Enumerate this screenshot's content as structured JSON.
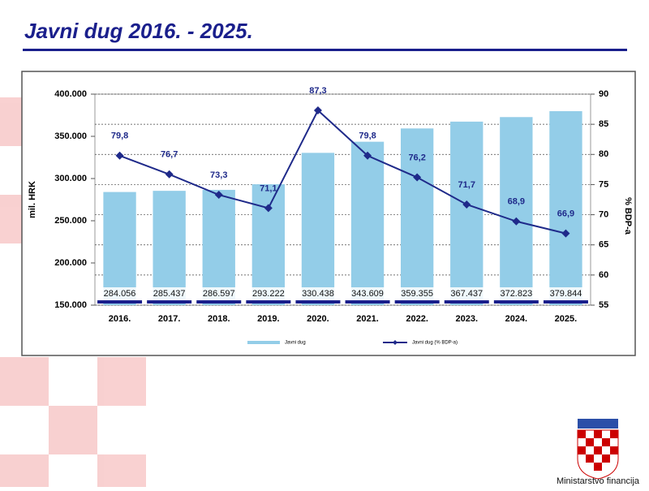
{
  "chart_data": {
    "type": "bar-line",
    "title": "Javni dug 2016. - 2025.",
    "categories": [
      "2016.",
      "2017.",
      "2018.",
      "2019.",
      "2020.",
      "2021.",
      "2022.",
      "2023.",
      "2024.",
      "2025."
    ],
    "series": [
      {
        "name": "Javni dug",
        "color": "#93cde8",
        "values": [
          284056,
          285437,
          286597,
          293222,
          330438,
          343609,
          359355,
          367437,
          372823,
          379844
        ],
        "value_labels": [
          "284.056",
          "285.437",
          "286.597",
          "293.222",
          "330.438",
          "343.609",
          "359.355",
          "367.437",
          "372.823",
          "379.844"
        ]
      },
      {
        "name": "Javni dug (% BDP-a)",
        "color": "#1f2a8a",
        "axis": "y2",
        "values": [
          79.8,
          76.7,
          73.3,
          71.1,
          87.3,
          79.8,
          76.2,
          71.7,
          68.9,
          66.9
        ],
        "value_labels": [
          "79,8",
          "76,7",
          "73,3",
          "71,1",
          "87,3",
          "79,8",
          "76,2",
          "71,7",
          "68,9",
          "66,9"
        ]
      }
    ],
    "ylabel": "mil. HRK",
    "y2label": "% BDP-a",
    "ylim": [
      150000,
      400000
    ],
    "yticks": [
      {
        "value": 150000,
        "label": "150.000"
      },
      {
        "value": 200000,
        "label": "200.000"
      },
      {
        "value": 250000,
        "label": "250.000"
      },
      {
        "value": 300000,
        "label": "300.000"
      },
      {
        "value": 350000,
        "label": "350.000"
      },
      {
        "value": 400000,
        "label": "400.000"
      }
    ],
    "y2lim": [
      55,
      90
    ],
    "y2ticks": [
      55,
      60,
      65,
      70,
      75,
      80,
      85,
      90
    ],
    "grid": true,
    "legend": "bottom"
  },
  "footer": "Ministarstvo financija"
}
